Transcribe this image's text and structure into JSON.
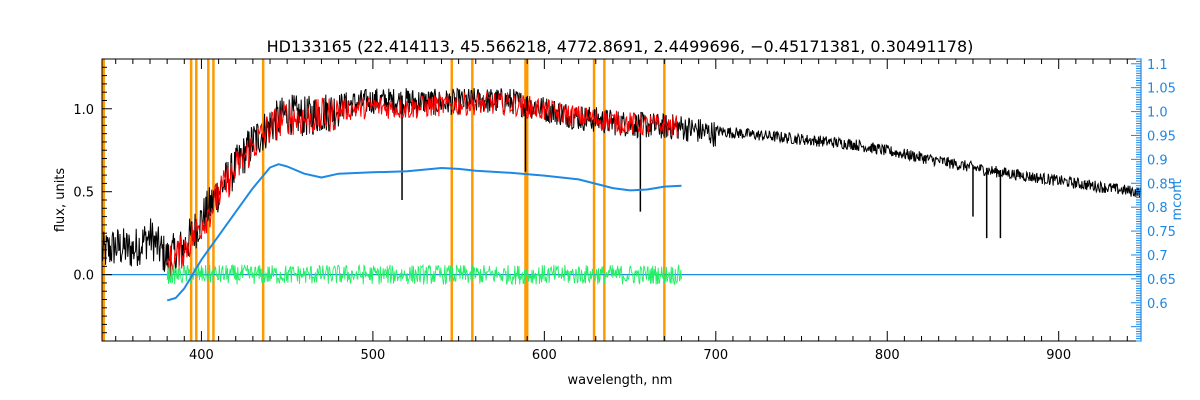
{
  "chart_data": {
    "type": "line",
    "title": "HD133165    (22.414113, 45.566218, 4772.8691, 2.4499696, −0.45171381, 0.30491178)",
    "xlabel": "wavelength, nm",
    "ylabel": "flux, units",
    "y2label": "mcont",
    "xlim": [
      342,
      948
    ],
    "ylim": [
      -0.4,
      1.3
    ],
    "y2lim": [
      0.52,
      1.11
    ],
    "xticks": [
      400,
      500,
      600,
      700,
      800,
      900
    ],
    "yticks": [
      0.0,
      0.5,
      1.0
    ],
    "ytick_labels": [
      "0.0",
      "0.5",
      "1.0"
    ],
    "y2ticks": [
      0.6,
      0.65,
      0.7,
      0.75,
      0.8,
      0.85,
      0.9,
      0.95,
      1.0,
      1.05,
      1.1
    ],
    "y2tick_labels": [
      "0.6",
      "0.65",
      "0.7",
      "0.75",
      "0.8",
      "0.85",
      "0.9",
      "0.95",
      "1.0",
      "1.05",
      "1.1"
    ],
    "colors": {
      "observed": "#000000",
      "model": "#ff0000",
      "continuum": "#1e88e5",
      "residual": "#22ee66",
      "zero_line": "#1e88e5",
      "mask_lines": "#ff9900",
      "right_axis": "#1e88e5"
    },
    "mask_lines_x": [
      343,
      394,
      397,
      404,
      407,
      436,
      546,
      558,
      589,
      590,
      629,
      635,
      670
    ],
    "series": [
      {
        "key": "observed",
        "x": [
          342,
          350,
          360,
          370,
          380,
          390,
          400,
          410,
          420,
          430,
          440,
          450,
          460,
          480,
          500,
          520,
          540,
          560,
          580,
          600,
          620,
          640,
          660,
          680,
          700,
          720,
          740,
          760,
          780,
          800,
          820,
          840,
          860,
          880,
          900,
          920,
          940,
          948
        ],
        "y": [
          0.18,
          0.22,
          0.2,
          0.28,
          0.15,
          0.22,
          0.38,
          0.55,
          0.7,
          0.85,
          0.95,
          1.02,
          1.0,
          1.05,
          1.08,
          1.08,
          1.07,
          1.08,
          1.08,
          1.03,
          0.98,
          0.95,
          0.93,
          0.92,
          0.88,
          0.86,
          0.84,
          0.82,
          0.8,
          0.76,
          0.72,
          0.68,
          0.64,
          0.61,
          0.58,
          0.55,
          0.52,
          0.51
        ]
      },
      {
        "key": "model",
        "x": [
          380,
          390,
          400,
          410,
          420,
          430,
          440,
          450,
          460,
          480,
          500,
          520,
          540,
          560,
          580,
          600,
          620,
          640,
          660,
          678
        ],
        "y": [
          0.1,
          0.2,
          0.35,
          0.52,
          0.68,
          0.82,
          0.93,
          1.0,
          0.98,
          1.02,
          1.04,
          1.03,
          1.05,
          1.06,
          1.06,
          1.02,
          0.98,
          0.95,
          0.93,
          0.92
        ]
      },
      {
        "key": "continuum",
        "x": [
          380,
          385,
          390,
          395,
          400,
          410,
          420,
          430,
          440,
          445,
          450,
          460,
          470,
          480,
          500,
          520,
          540,
          550,
          560,
          580,
          600,
          620,
          640,
          650,
          660,
          670,
          680
        ],
        "y": [
          0.605,
          0.61,
          0.63,
          0.66,
          0.69,
          0.74,
          0.79,
          0.84,
          0.883,
          0.89,
          0.885,
          0.87,
          0.862,
          0.87,
          0.873,
          0.875,
          0.882,
          0.88,
          0.876,
          0.872,
          0.866,
          0.858,
          0.84,
          0.835,
          0.837,
          0.843,
          0.845
        ]
      }
    ],
    "absorption_features": [
      {
        "x": 517,
        "y": 0.45
      },
      {
        "x": 589,
        "y": 0.62
      },
      {
        "x": 656,
        "y": 0.38
      },
      {
        "x": 850,
        "y": 0.35
      },
      {
        "x": 858,
        "y": 0.22
      },
      {
        "x": 866,
        "y": 0.22
      }
    ],
    "residual_range": [
      380,
      680
    ]
  }
}
